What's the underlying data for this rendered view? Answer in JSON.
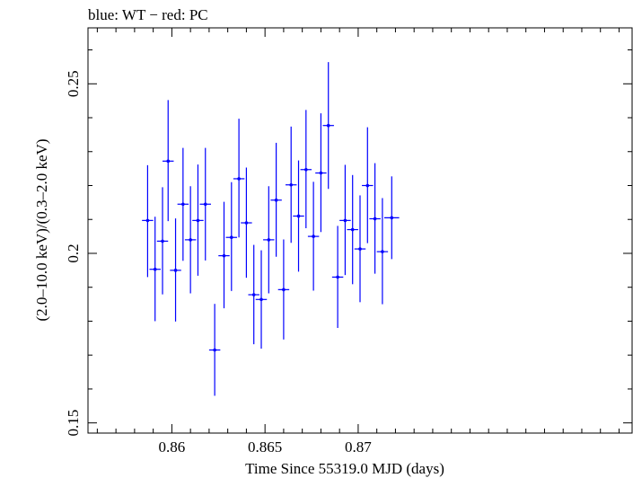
{
  "chart_data": {
    "type": "scatter",
    "title": "blue: WT − red: PC",
    "xlabel": "Time Since 55319.0 MJD (days)",
    "ylabel": "(2.0–10.0 keV)/(0.3–2.0 keV)",
    "xlim": [
      0.8555,
      0.8847
    ],
    "ylim": [
      0.147,
      0.2665
    ],
    "x_ticks": [
      {
        "value": 0.86,
        "label": "0.86"
      },
      {
        "value": 0.865,
        "label": "0.865"
      },
      {
        "value": 0.87,
        "label": "0.87"
      }
    ],
    "y_ticks": [
      {
        "value": 0.15,
        "label": "0.15"
      },
      {
        "value": 0.2,
        "label": "0.2"
      },
      {
        "value": 0.25,
        "label": "0.25"
      }
    ],
    "x_minor_step": 0.001,
    "y_minor_step": 0.01,
    "grid": false,
    "series": [
      {
        "name": "WT",
        "color": "#0000ff",
        "points": [
          {
            "x": 0.8587,
            "y": 0.2097,
            "xerr": 0.0003,
            "yerr_low": 0.0167,
            "yerr_high": 0.0163
          },
          {
            "x": 0.8591,
            "y": 0.1953,
            "xerr": 0.0003,
            "yerr_low": 0.0153,
            "yerr_high": 0.0155
          },
          {
            "x": 0.8595,
            "y": 0.2036,
            "xerr": 0.0003,
            "yerr_low": 0.0157,
            "yerr_high": 0.0159
          },
          {
            "x": 0.8598,
            "y": 0.2272,
            "xerr": 0.0003,
            "yerr_low": 0.0177,
            "yerr_high": 0.018
          },
          {
            "x": 0.8602,
            "y": 0.195,
            "xerr": 0.0003,
            "yerr_low": 0.0151,
            "yerr_high": 0.0153
          },
          {
            "x": 0.8606,
            "y": 0.2145,
            "xerr": 0.0003,
            "yerr_low": 0.0167,
            "yerr_high": 0.0166
          },
          {
            "x": 0.861,
            "y": 0.204,
            "xerr": 0.0003,
            "yerr_low": 0.0158,
            "yerr_high": 0.0158
          },
          {
            "x": 0.8614,
            "y": 0.2097,
            "xerr": 0.0003,
            "yerr_low": 0.0163,
            "yerr_high": 0.0165
          },
          {
            "x": 0.8618,
            "y": 0.2145,
            "xerr": 0.0003,
            "yerr_low": 0.0166,
            "yerr_high": 0.0166
          },
          {
            "x": 0.8623,
            "y": 0.1715,
            "xerr": 0.0003,
            "yerr_low": 0.0135,
            "yerr_high": 0.0136
          },
          {
            "x": 0.8628,
            "y": 0.1993,
            "xerr": 0.0003,
            "yerr_low": 0.0155,
            "yerr_high": 0.0159
          },
          {
            "x": 0.8632,
            "y": 0.2047,
            "xerr": 0.0003,
            "yerr_low": 0.0158,
            "yerr_high": 0.0163
          },
          {
            "x": 0.8636,
            "y": 0.222,
            "xerr": 0.0003,
            "yerr_low": 0.0173,
            "yerr_high": 0.0177
          },
          {
            "x": 0.864,
            "y": 0.209,
            "xerr": 0.0003,
            "yerr_low": 0.0162,
            "yerr_high": 0.0163
          },
          {
            "x": 0.8644,
            "y": 0.1878,
            "xerr": 0.0003,
            "yerr_low": 0.0146,
            "yerr_high": 0.0147
          },
          {
            "x": 0.8648,
            "y": 0.1864,
            "xerr": 0.0003,
            "yerr_low": 0.0145,
            "yerr_high": 0.0145
          },
          {
            "x": 0.8652,
            "y": 0.204,
            "xerr": 0.0003,
            "yerr_low": 0.0158,
            "yerr_high": 0.0158
          },
          {
            "x": 0.8656,
            "y": 0.2157,
            "xerr": 0.0003,
            "yerr_low": 0.0167,
            "yerr_high": 0.0169
          },
          {
            "x": 0.866,
            "y": 0.1893,
            "xerr": 0.0003,
            "yerr_low": 0.0147,
            "yerr_high": 0.0148
          },
          {
            "x": 0.8664,
            "y": 0.2202,
            "xerr": 0.0003,
            "yerr_low": 0.0171,
            "yerr_high": 0.0172
          },
          {
            "x": 0.8668,
            "y": 0.211,
            "xerr": 0.0003,
            "yerr_low": 0.0164,
            "yerr_high": 0.0164
          },
          {
            "x": 0.8672,
            "y": 0.2247,
            "xerr": 0.0003,
            "yerr_low": 0.0173,
            "yerr_high": 0.0176
          },
          {
            "x": 0.8676,
            "y": 0.205,
            "xerr": 0.0003,
            "yerr_low": 0.016,
            "yerr_high": 0.0161
          },
          {
            "x": 0.868,
            "y": 0.2237,
            "xerr": 0.0003,
            "yerr_low": 0.0174,
            "yerr_high": 0.0176
          },
          {
            "x": 0.8684,
            "y": 0.2377,
            "xerr": 0.0003,
            "yerr_low": 0.0187,
            "yerr_high": 0.0187
          },
          {
            "x": 0.8689,
            "y": 0.193,
            "xerr": 0.0003,
            "yerr_low": 0.015,
            "yerr_high": 0.0151
          },
          {
            "x": 0.8693,
            "y": 0.2097,
            "xerr": 0.0003,
            "yerr_low": 0.0161,
            "yerr_high": 0.0164
          },
          {
            "x": 0.8697,
            "y": 0.207,
            "xerr": 0.0003,
            "yerr_low": 0.0161,
            "yerr_high": 0.0161
          },
          {
            "x": 0.8701,
            "y": 0.2013,
            "xerr": 0.0003,
            "yerr_low": 0.0157,
            "yerr_high": 0.0158
          },
          {
            "x": 0.8705,
            "y": 0.22,
            "xerr": 0.0003,
            "yerr_low": 0.017,
            "yerr_high": 0.0172
          },
          {
            "x": 0.8709,
            "y": 0.2102,
            "xerr": 0.0003,
            "yerr_low": 0.0162,
            "yerr_high": 0.0164
          },
          {
            "x": 0.8713,
            "y": 0.2005,
            "xerr": 0.0003,
            "yerr_low": 0.0155,
            "yerr_high": 0.0158
          },
          {
            "x": 0.8718,
            "y": 0.2105,
            "xerr": 0.0004,
            "yerr_low": 0.0122,
            "yerr_high": 0.0122
          }
        ]
      }
    ]
  }
}
